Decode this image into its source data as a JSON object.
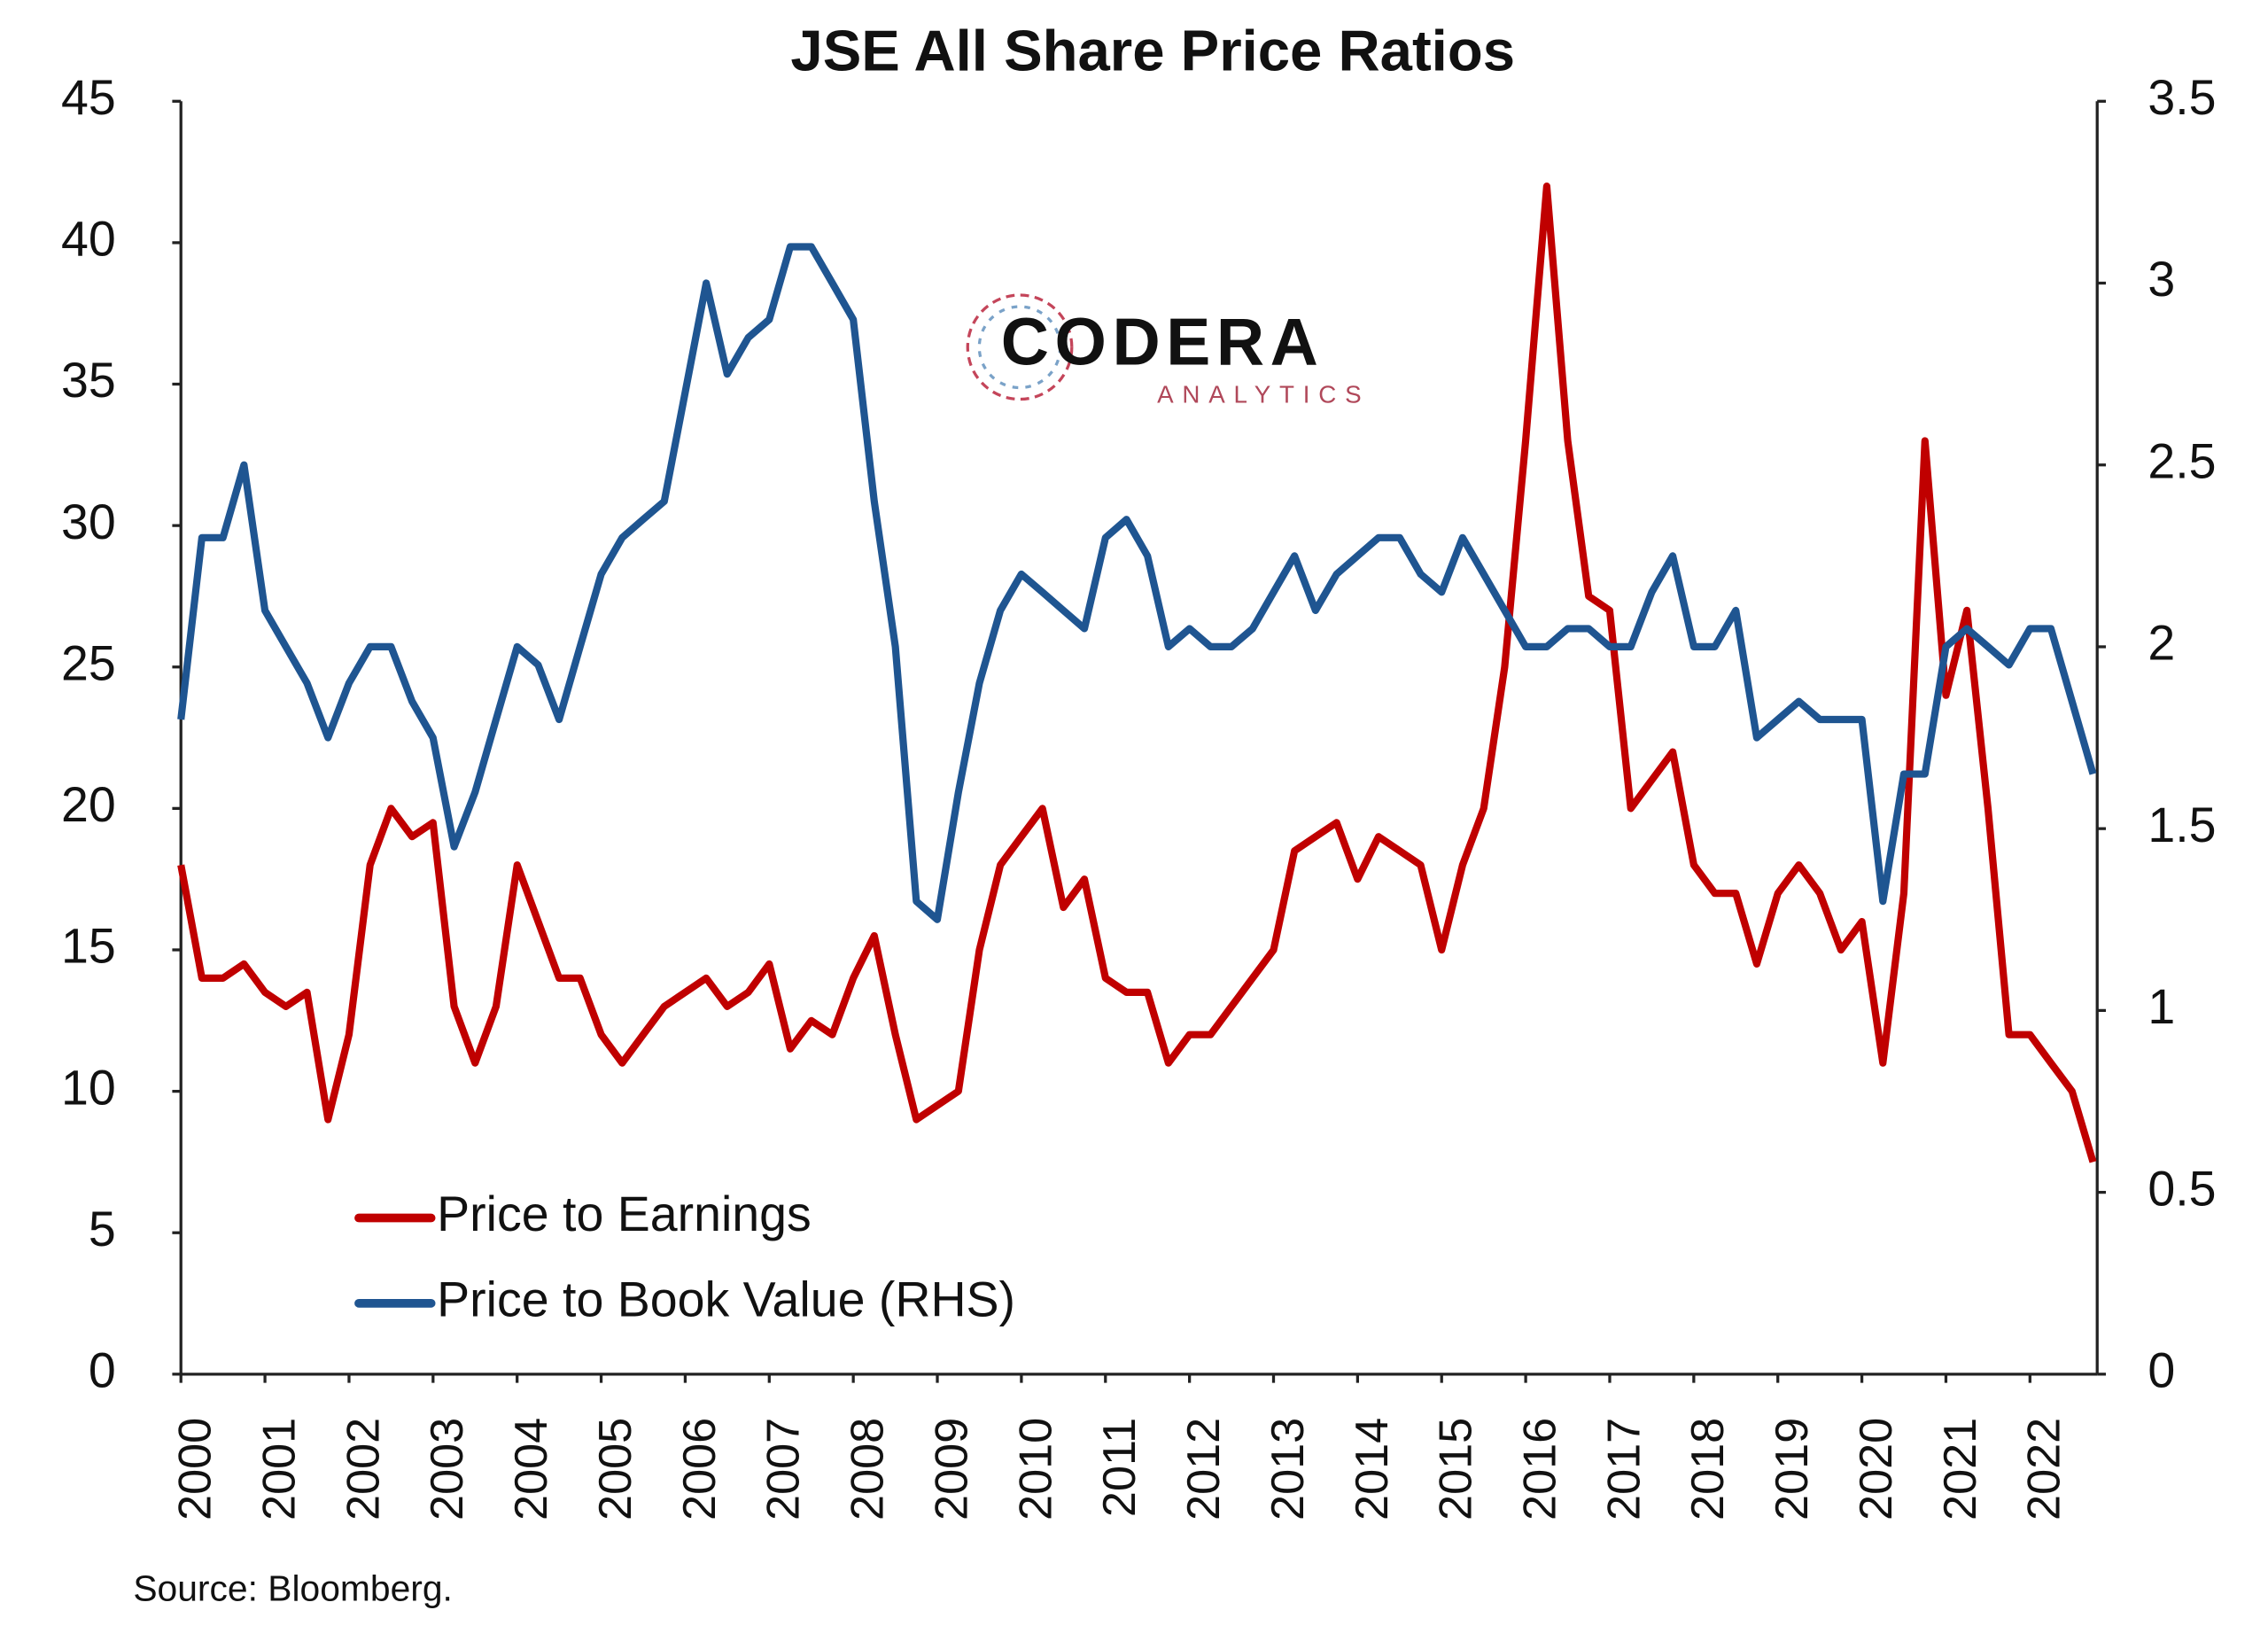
{
  "chart_data": {
    "type": "line",
    "title": "JSE All Share Price Ratios",
    "source": "Source: Bloomberg.",
    "logo": {
      "name": "CODERA",
      "tagline": "ANALYTICS"
    },
    "x": [
      2000,
      2000.25,
      2000.5,
      2000.75,
      2001,
      2001.25,
      2001.5,
      2001.75,
      2002,
      2002.25,
      2002.5,
      2002.75,
      2003,
      2003.25,
      2003.5,
      2003.75,
      2004,
      2004.25,
      2004.5,
      2004.75,
      2005,
      2005.25,
      2005.5,
      2005.75,
      2006,
      2006.25,
      2006.5,
      2006.75,
      2007,
      2007.25,
      2007.5,
      2007.75,
      2008,
      2008.25,
      2008.5,
      2008.75,
      2009,
      2009.25,
      2009.5,
      2009.75,
      2010,
      2010.25,
      2010.5,
      2010.75,
      2011,
      2011.25,
      2011.5,
      2011.75,
      2012,
      2012.25,
      2012.5,
      2012.75,
      2013,
      2013.25,
      2013.5,
      2013.75,
      2014,
      2014.25,
      2014.5,
      2014.75,
      2015,
      2015.25,
      2015.5,
      2015.75,
      2016,
      2016.25,
      2016.5,
      2016.75,
      2017,
      2017.25,
      2017.5,
      2017.75,
      2018,
      2018.25,
      2018.5,
      2018.75,
      2019,
      2019.25,
      2019.5,
      2019.75,
      2020,
      2020.25,
      2020.5,
      2020.75,
      2021,
      2021.25,
      2021.5,
      2021.75,
      2022,
      2022.25,
      2022.5,
      2022.75
    ],
    "series": [
      {
        "name": "Price to Earnings",
        "color": "#c00000",
        "axis": "y",
        "values": [
          18,
          14,
          14,
          14.5,
          13.5,
          13,
          13.5,
          9,
          12,
          18,
          20,
          19,
          19.5,
          13,
          11,
          13,
          18,
          16,
          14,
          14,
          12,
          11,
          12,
          13,
          13.5,
          14,
          13,
          13.5,
          14.5,
          11.5,
          12.5,
          12,
          14,
          15.5,
          12,
          9,
          9.5,
          10,
          15,
          18,
          19,
          20,
          16.5,
          17.5,
          14,
          13.5,
          13.5,
          11,
          12,
          12,
          13,
          14,
          15,
          18.5,
          19,
          19.5,
          17.5,
          19,
          18.5,
          18,
          15,
          18,
          20,
          25,
          33,
          42,
          33,
          27.5,
          27,
          20,
          21,
          22,
          18,
          17,
          17,
          14.5,
          17,
          18,
          17,
          15,
          16,
          11,
          17,
          33,
          24,
          27,
          20,
          12,
          12,
          11,
          10,
          7.5
        ]
      },
      {
        "name": "Price to Book Value (RHS)",
        "color": "#1f5591",
        "axis": "y2",
        "values": [
          1.8,
          2.3,
          2.3,
          2.5,
          2.1,
          2.0,
          1.9,
          1.75,
          1.9,
          2.0,
          2.0,
          1.85,
          1.75,
          1.45,
          1.6,
          1.8,
          2.0,
          1.95,
          1.8,
          2.0,
          2.2,
          2.3,
          2.35,
          2.4,
          2.7,
          3.0,
          2.75,
          2.85,
          2.9,
          3.1,
          3.1,
          3.0,
          2.9,
          2.4,
          2.0,
          1.3,
          1.25,
          1.6,
          1.9,
          2.1,
          2.2,
          2.15,
          2.1,
          2.05,
          2.3,
          2.35,
          2.25,
          2.0,
          2.05,
          2.0,
          2.0,
          2.05,
          2.15,
          2.25,
          2.1,
          2.2,
          2.25,
          2.3,
          2.3,
          2.2,
          2.15,
          2.3,
          2.2,
          2.1,
          2.0,
          2.0,
          2.05,
          2.05,
          2.0,
          2.0,
          2.15,
          2.25,
          2.0,
          2.0,
          2.1,
          1.75,
          1.8,
          1.85,
          1.8,
          1.8,
          1.8,
          1.3,
          1.65,
          1.65,
          2.0,
          2.05,
          2.0,
          1.95,
          2.05,
          2.05,
          1.85,
          1.65
        ]
      }
    ],
    "xlim": [
      2000,
      2022.8
    ],
    "xticks": [
      2000,
      2001,
      2002,
      2003,
      2004,
      2005,
      2006,
      2007,
      2008,
      2009,
      2010,
      2011,
      2012,
      2013,
      2014,
      2015,
      2016,
      2017,
      2018,
      2019,
      2020,
      2021,
      2022
    ],
    "ylim": [
      0,
      45
    ],
    "yticks": [
      0,
      5,
      10,
      15,
      20,
      25,
      30,
      35,
      40,
      45
    ],
    "y2lim": [
      0,
      3.5
    ],
    "y2ticks": [
      0,
      0.5,
      1,
      1.5,
      2,
      2.5,
      3,
      3.5
    ],
    "grid": false,
    "legend": "lower-left"
  }
}
